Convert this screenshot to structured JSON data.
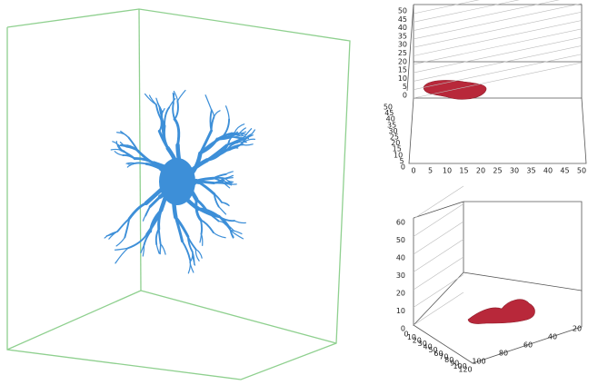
{
  "top_plot": {
    "z_ticks": [
      0,
      5,
      10,
      15,
      20,
      25,
      30,
      35,
      40,
      45,
      50
    ],
    "y_ticks": [
      50,
      45,
      40,
      35,
      30,
      25,
      20,
      15,
      10,
      5,
      0
    ],
    "x_ticks": [
      0,
      5,
      10,
      15,
      20,
      25,
      30,
      35,
      40,
      45,
      50
    ]
  },
  "bottom_plot": {
    "z_ticks": [
      0,
      10,
      20,
      30,
      40,
      50,
      60
    ],
    "x_ticks": [
      0,
      10,
      20,
      30,
      40,
      50,
      60,
      70,
      80,
      90,
      100,
      120
    ],
    "y_ticks": [
      100,
      80,
      60,
      40,
      20
    ]
  }
}
